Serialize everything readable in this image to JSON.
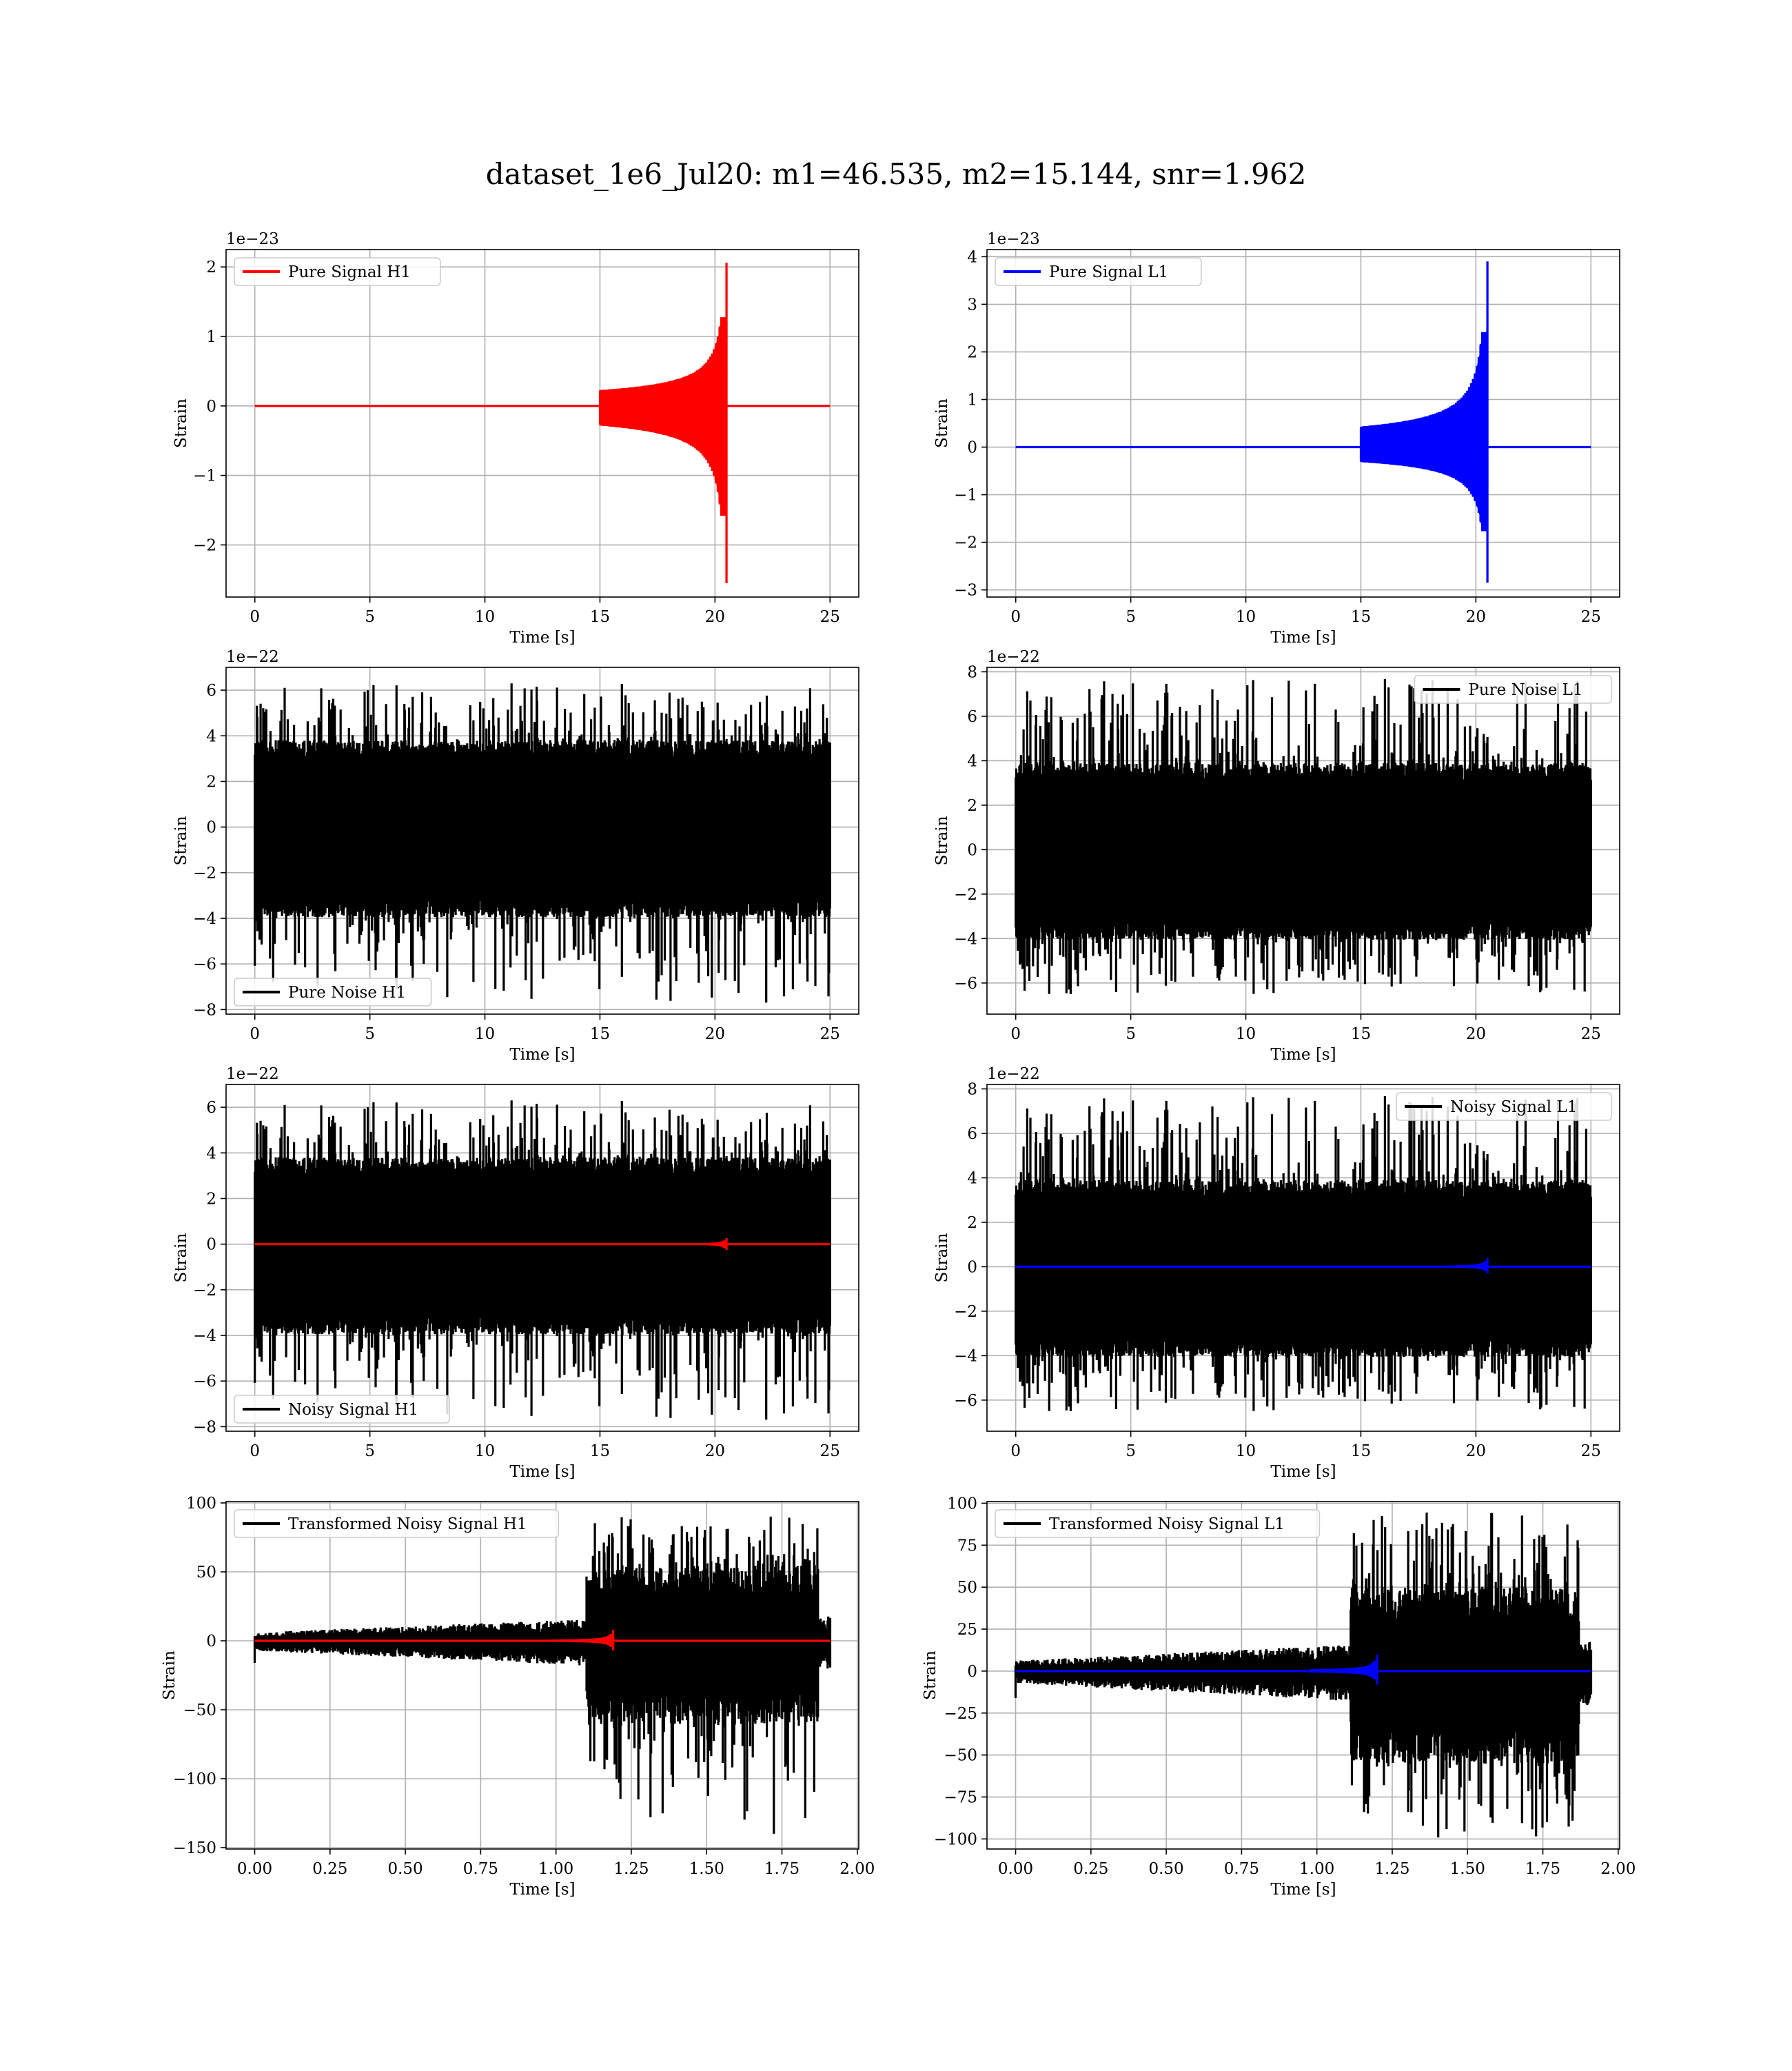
{
  "title": "dataset_1e6_Jul20: m1=46.535, m2=15.144, snr=1.962",
  "colors": {
    "h1_signal": "#ff0000",
    "l1_signal": "#0000ff",
    "noise": "#000000",
    "grid": "#b0b0b0"
  },
  "chart_data": [
    {
      "type": "line",
      "legend": [
        "Pure Signal H1"
      ],
      "legend_loc": "upper left",
      "xlabel": "Time [s]",
      "ylabel": "Strain",
      "offset_text": "1e−23",
      "xlim": [
        -1.25,
        26.25
      ],
      "ylim": [
        -2.75,
        2.25
      ],
      "xticks": [
        0,
        5,
        10,
        15,
        20,
        25
      ],
      "xtick_labels": [
        "0",
        "5",
        "10",
        "15",
        "20",
        "25"
      ],
      "yticks": [
        -2,
        -1,
        0,
        1,
        2
      ],
      "ytick_labels": [
        "−2",
        "−1",
        "0",
        "1",
        "2"
      ],
      "grid": true,
      "series": [
        {
          "kind": "chirp",
          "color": "#ff0000",
          "x_start": 0,
          "x_end": 25,
          "merger_t": 20.5,
          "y_max": 2.06,
          "y_min": -2.55,
          "onset_t": 15
        }
      ]
    },
    {
      "type": "line",
      "legend": [
        "Pure Signal L1"
      ],
      "legend_loc": "upper left",
      "xlabel": "Time [s]",
      "ylabel": "Strain",
      "offset_text": "1e−23",
      "xlim": [
        -1.25,
        26.25
      ],
      "ylim": [
        -3.15,
        4.15
      ],
      "xticks": [
        0,
        5,
        10,
        15,
        20,
        25
      ],
      "xtick_labels": [
        "0",
        "5",
        "10",
        "15",
        "20",
        "25"
      ],
      "yticks": [
        -3,
        -2,
        -1,
        0,
        1,
        2,
        3,
        4
      ],
      "ytick_labels": [
        "−3",
        "−2",
        "−1",
        "0",
        "1",
        "2",
        "3",
        "4"
      ],
      "grid": true,
      "series": [
        {
          "kind": "chirp",
          "color": "#0000ff",
          "x_start": 0,
          "x_end": 25,
          "merger_t": 20.5,
          "y_max": 3.9,
          "y_min": -2.85,
          "onset_t": 15
        }
      ]
    },
    {
      "type": "line",
      "legend": [
        "Pure Noise H1"
      ],
      "legend_loc": "lower left",
      "xlabel": "Time [s]",
      "ylabel": "Strain",
      "offset_text": "1e−22",
      "xlim": [
        -1.25,
        26.25
      ],
      "ylim": [
        -8.2,
        7.0
      ],
      "xticks": [
        0,
        5,
        10,
        15,
        20,
        25
      ],
      "xtick_labels": [
        "0",
        "5",
        "10",
        "15",
        "20",
        "25"
      ],
      "yticks": [
        -8,
        -6,
        -4,
        -2,
        0,
        2,
        4,
        6
      ],
      "ytick_labels": [
        "−8",
        "−6",
        "−4",
        "−2",
        "0",
        "2",
        "4",
        "6"
      ],
      "grid": true,
      "series": [
        {
          "kind": "noise",
          "color": "#000000",
          "x_start": 0,
          "x_end": 25,
          "core": 3.8,
          "peak_max": 6.3,
          "peak_min": -7.7,
          "seed": 11
        }
      ]
    },
    {
      "type": "line",
      "legend": [
        "Pure Noise L1"
      ],
      "legend_loc": "upper right",
      "xlabel": "Time [s]",
      "ylabel": "Strain",
      "offset_text": "1e−22",
      "xlim": [
        -1.25,
        26.25
      ],
      "ylim": [
        -7.4,
        8.2
      ],
      "xticks": [
        0,
        5,
        10,
        15,
        20,
        25
      ],
      "xtick_labels": [
        "0",
        "5",
        "10",
        "15",
        "20",
        "25"
      ],
      "yticks": [
        -6,
        -4,
        -2,
        0,
        2,
        4,
        6,
        8
      ],
      "ytick_labels": [
        "−6",
        "−4",
        "−2",
        "0",
        "2",
        "4",
        "6",
        "8"
      ],
      "grid": true,
      "series": [
        {
          "kind": "noise",
          "color": "#000000",
          "x_start": 0,
          "x_end": 25,
          "core": 3.9,
          "peak_max": 7.7,
          "peak_min": -6.5,
          "seed": 23
        }
      ]
    },
    {
      "type": "line",
      "legend": [
        "Noisy Signal H1"
      ],
      "legend_loc": "lower left",
      "xlabel": "Time [s]",
      "ylabel": "Strain",
      "offset_text": "1e−22",
      "xlim": [
        -1.25,
        26.25
      ],
      "ylim": [
        -8.2,
        7.0
      ],
      "xticks": [
        0,
        5,
        10,
        15,
        20,
        25
      ],
      "xtick_labels": [
        "0",
        "5",
        "10",
        "15",
        "20",
        "25"
      ],
      "yticks": [
        -8,
        -6,
        -4,
        -2,
        0,
        2,
        4,
        6
      ],
      "ytick_labels": [
        "−8",
        "−6",
        "−4",
        "−2",
        "0",
        "2",
        "4",
        "6"
      ],
      "grid": true,
      "series": [
        {
          "kind": "noise",
          "color": "#000000",
          "x_start": 0,
          "x_end": 25,
          "core": 3.8,
          "peak_max": 6.3,
          "peak_min": -7.7,
          "seed": 11
        },
        {
          "kind": "chirp",
          "color": "#ff0000",
          "x_start": 0,
          "x_end": 25,
          "merger_t": 20.5,
          "y_max": 0.26,
          "y_min": -0.26,
          "onset_t": 18
        }
      ]
    },
    {
      "type": "line",
      "legend": [
        "Noisy Signal L1"
      ],
      "legend_loc": "upper right",
      "xlabel": "Time [s]",
      "ylabel": "Strain",
      "offset_text": "1e−22",
      "xlim": [
        -1.25,
        26.25
      ],
      "ylim": [
        -7.4,
        8.2
      ],
      "xticks": [
        0,
        5,
        10,
        15,
        20,
        25
      ],
      "xtick_labels": [
        "0",
        "5",
        "10",
        "15",
        "20",
        "25"
      ],
      "yticks": [
        -6,
        -4,
        -2,
        0,
        2,
        4,
        6,
        8
      ],
      "ytick_labels": [
        "−6",
        "−4",
        "−2",
        "0",
        "2",
        "4",
        "6",
        "8"
      ],
      "grid": true,
      "series": [
        {
          "kind": "noise",
          "color": "#000000",
          "x_start": 0,
          "x_end": 25,
          "core": 3.9,
          "peak_max": 7.7,
          "peak_min": -6.5,
          "seed": 23
        },
        {
          "kind": "chirp",
          "color": "#0000ff",
          "x_start": 0,
          "x_end": 25,
          "merger_t": 20.5,
          "y_max": 0.4,
          "y_min": -0.3,
          "onset_t": 18
        }
      ]
    },
    {
      "type": "line",
      "legend": [
        "Transformed Noisy Signal H1"
      ],
      "legend_loc": "upper left",
      "xlabel": "Time [s]",
      "ylabel": "Strain",
      "offset_text": "",
      "xlim": [
        -0.095,
        2.005
      ],
      "ylim": [
        -151,
        101
      ],
      "xticks": [
        0,
        0.25,
        0.5,
        0.75,
        1.0,
        1.25,
        1.5,
        1.75,
        2.0
      ],
      "xtick_labels": [
        "0.00",
        "0.25",
        "0.50",
        "0.75",
        "1.00",
        "1.25",
        "1.50",
        "1.75",
        "2.00"
      ],
      "yticks": [
        -150,
        -100,
        -50,
        0,
        50,
        100
      ],
      "ytick_labels": [
        "−150",
        "−100",
        "−50",
        "0",
        "50",
        "100"
      ],
      "grid": true,
      "series": [
        {
          "kind": "tnoise",
          "color": "#000000",
          "x_start": 0,
          "x_end": 1.91,
          "jump_t": 1.1,
          "end_t": 1.87,
          "pre_amp": 8,
          "post_core": 55,
          "peak_max": 92,
          "peak_min": -140,
          "seed": 37
        },
        {
          "kind": "chirp",
          "color": "#ff0000",
          "x_start": 0,
          "x_end": 1.91,
          "merger_t": 1.19,
          "y_max": 8,
          "y_min": -7,
          "onset_t": 0.98
        }
      ]
    },
    {
      "type": "line",
      "legend": [
        "Transformed Noisy Signal L1"
      ],
      "legend_loc": "upper left",
      "xlabel": "Time [s]",
      "ylabel": "Strain",
      "offset_text": "",
      "xlim": [
        -0.095,
        2.005
      ],
      "ylim": [
        -106,
        101
      ],
      "xticks": [
        0,
        0.25,
        0.5,
        0.75,
        1.0,
        1.25,
        1.5,
        1.75,
        2.0
      ],
      "xtick_labels": [
        "0.00",
        "0.25",
        "0.50",
        "0.75",
        "1.00",
        "1.25",
        "1.50",
        "1.75",
        "2.00"
      ],
      "yticks": [
        -100,
        -75,
        -50,
        -25,
        0,
        25,
        50,
        75,
        100
      ],
      "ytick_labels": [
        "−100",
        "−75",
        "−50",
        "−25",
        "0",
        "25",
        "50",
        "75",
        "100"
      ],
      "grid": true,
      "series": [
        {
          "kind": "tnoise",
          "color": "#000000",
          "x_start": 0,
          "x_end": 1.91,
          "jump_t": 1.11,
          "end_t": 1.87,
          "pre_amp": 8,
          "post_core": 50,
          "peak_max": 95,
          "peak_min": -100,
          "seed": 41
        },
        {
          "kind": "chirp",
          "color": "#0000ff",
          "x_start": 0,
          "x_end": 1.91,
          "merger_t": 1.2,
          "y_max": 10,
          "y_min": -8,
          "onset_t": 0.98
        }
      ]
    }
  ]
}
